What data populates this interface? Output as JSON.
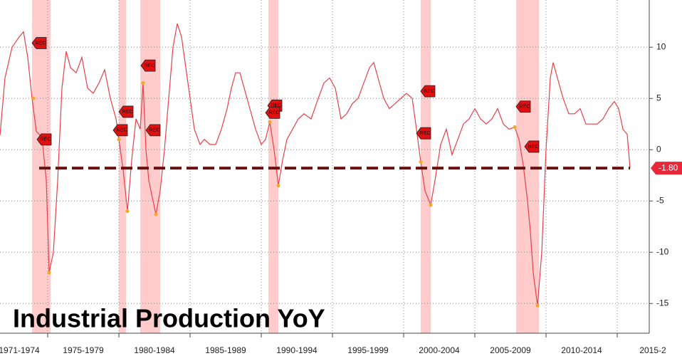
{
  "chart_data": {
    "type": "line",
    "title": "Industrial Production YoY",
    "color": "#e8404a",
    "x": [
      1971.65,
      1972.0,
      1972.5,
      1973.0,
      1973.3,
      1973.6,
      1973.9,
      1974.2,
      1974.6,
      1974.9,
      1975.1,
      1975.4,
      1975.7,
      1976.0,
      1976.3,
      1976.6,
      1977.0,
      1977.4,
      1977.8,
      1978.2,
      1978.6,
      1979.0,
      1979.4,
      1979.8,
      1980.0,
      1980.3,
      1980.6,
      1980.9,
      1981.2,
      1981.5,
      1981.7,
      1981.9,
      1982.1,
      1982.4,
      1982.6,
      1982.9,
      1983.2,
      1983.5,
      1983.8,
      1984.1,
      1984.4,
      1984.7,
      1985.0,
      1985.3,
      1985.7,
      1986.0,
      1986.4,
      1986.8,
      1987.2,
      1987.6,
      1987.9,
      1988.2,
      1988.5,
      1988.8,
      1989.2,
      1989.6,
      1990.0,
      1990.3,
      1990.6,
      1990.9,
      1991.2,
      1991.5,
      1991.8,
      1992.2,
      1992.6,
      1993.0,
      1993.5,
      1994.0,
      1994.4,
      1994.8,
      1995.2,
      1995.6,
      1996.0,
      1996.4,
      1996.8,
      1997.2,
      1997.6,
      1997.9,
      1998.2,
      1998.6,
      1999.0,
      1999.4,
      1999.8,
      2000.2,
      2000.6,
      2000.9,
      2001.2,
      2001.5,
      2001.9,
      2002.2,
      2002.6,
      2003.0,
      2003.4,
      2003.8,
      2004.2,
      2004.6,
      2005.0,
      2005.4,
      2005.8,
      2006.2,
      2006.6,
      2007.0,
      2007.4,
      2007.8,
      2008.1,
      2008.4,
      2008.7,
      2008.9,
      2009.1,
      2009.4,
      2009.7,
      2010.0,
      2010.3,
      2010.5,
      2010.8,
      2011.2,
      2011.6,
      2012.0,
      2012.4,
      2012.8,
      2013.2,
      2013.6,
      2014.0,
      2014.4,
      2014.8,
      2015.1,
      2015.4,
      2015.7,
      2015.9
    ],
    "values": [
      1.4,
      7,
      10,
      11,
      11.5,
      9,
      5,
      1.8,
      1.2,
      -3,
      -12,
      -10,
      -3,
      6,
      9.6,
      8,
      7.5,
      9,
      6,
      5.5,
      6.5,
      7.8,
      5,
      3,
      1,
      -2,
      -6,
      -1,
      3,
      2,
      6.5,
      0,
      -3,
      -5,
      -6.3,
      -4,
      0,
      5,
      10,
      12.3,
      11,
      8,
      5,
      2,
      0.5,
      1,
      0.5,
      0.5,
      2,
      4,
      6,
      7.5,
      7.5,
      6,
      4,
      2,
      0.5,
      1,
      2.7,
      0,
      -3.5,
      -1,
      1,
      2,
      3,
      3.5,
      3,
      5,
      6.5,
      7,
      6,
      3,
      3.5,
      4.5,
      5,
      6.5,
      8,
      8.5,
      7,
      5,
      4,
      4.5,
      5,
      5.5,
      5,
      2,
      -1.2,
      -4,
      -5.4,
      -3,
      0.5,
      2,
      -0.5,
      1,
      2.5,
      3,
      4,
      3,
      2.5,
      3,
      4,
      2.5,
      2,
      2.2,
      1,
      -1.5,
      -5,
      -8,
      -12,
      -15.2,
      -10,
      0,
      7,
      8.5,
      7,
      5,
      3.5,
      3.5,
      4,
      2.5,
      2.5,
      2.5,
      3,
      4,
      4.7,
      4,
      2,
      1.5,
      -1.8
    ],
    "xlim": [
      1971.65,
      2017.25
    ],
    "ylim": [
      -17.9,
      14.6
    ],
    "yticks": [
      10,
      5,
      0,
      -5,
      -10,
      -15
    ],
    "xticks": [
      {
        "value": 1973,
        "label": "1971-1974"
      },
      {
        "value": 1977.5,
        "label": "1975-1979"
      },
      {
        "value": 1982.5,
        "label": "1980-1984"
      },
      {
        "value": 1987.5,
        "label": "1985-1989"
      },
      {
        "value": 1992.5,
        "label": "1990-1994"
      },
      {
        "value": 1997.5,
        "label": "1995-1999"
      },
      {
        "value": 2002.5,
        "label": "2000-2004"
      },
      {
        "value": 2007.5,
        "label": "2005-2009"
      },
      {
        "value": 2012.5,
        "label": "2010-2014"
      },
      {
        "value": 2017.5,
        "label": "2015-2"
      }
    ],
    "xgrid": [
      1975,
      1980,
      1985,
      1990,
      1995,
      2000,
      2005,
      2010,
      2015
    ],
    "grid": true,
    "recessions": [
      [
        1973.9,
        1975.2
      ],
      [
        1980.0,
        1980.5
      ],
      [
        1981.5,
        1982.9
      ],
      [
        1990.5,
        1991.2
      ],
      [
        2001.2,
        2001.9
      ],
      [
        2007.9,
        2009.5
      ]
    ],
    "highlight_points": [
      [
        1974.0,
        5
      ],
      [
        1975.1,
        -12
      ],
      [
        1980.0,
        1
      ],
      [
        1980.6,
        -6
      ],
      [
        1981.7,
        6.5
      ],
      [
        1982.6,
        -6.3
      ],
      [
        1990.6,
        2.7
      ],
      [
        1991.2,
        -3.5
      ],
      [
        2001.2,
        -1.2
      ],
      [
        2001.9,
        -5.4
      ],
      [
        2007.8,
        2.2
      ],
      [
        2009.4,
        -15.2
      ]
    ],
    "annotations": [
      {
        "x": 1974.4,
        "y": 10.4,
        "label": "REC"
      },
      {
        "x": 1974.75,
        "y": 1.0,
        "label": "REC"
      },
      {
        "x": 1980.5,
        "y": 3.7,
        "label": "REC"
      },
      {
        "x": 1980.1,
        "y": 1.9,
        "label": "REC"
      },
      {
        "x": 1982.4,
        "y": 1.9,
        "label": "REC"
      },
      {
        "x": 1982.05,
        "y": 8.2,
        "label": "REC"
      },
      {
        "x": 1990.95,
        "y": 4.3,
        "label": "REC"
      },
      {
        "x": 1990.8,
        "y": 3.6,
        "label": "REC"
      },
      {
        "x": 2001.7,
        "y": 5.7,
        "label": "REC"
      },
      {
        "x": 2001.4,
        "y": 1.6,
        "label": "REC"
      },
      {
        "x": 2008.4,
        "y": 4.2,
        "label": "REC"
      },
      {
        "x": 2009.0,
        "y": 0.3,
        "label": "REC"
      }
    ],
    "reference_line": {
      "value": -1.8,
      "label": "-1.80",
      "from": 1974.4,
      "to": 2015.9
    }
  }
}
